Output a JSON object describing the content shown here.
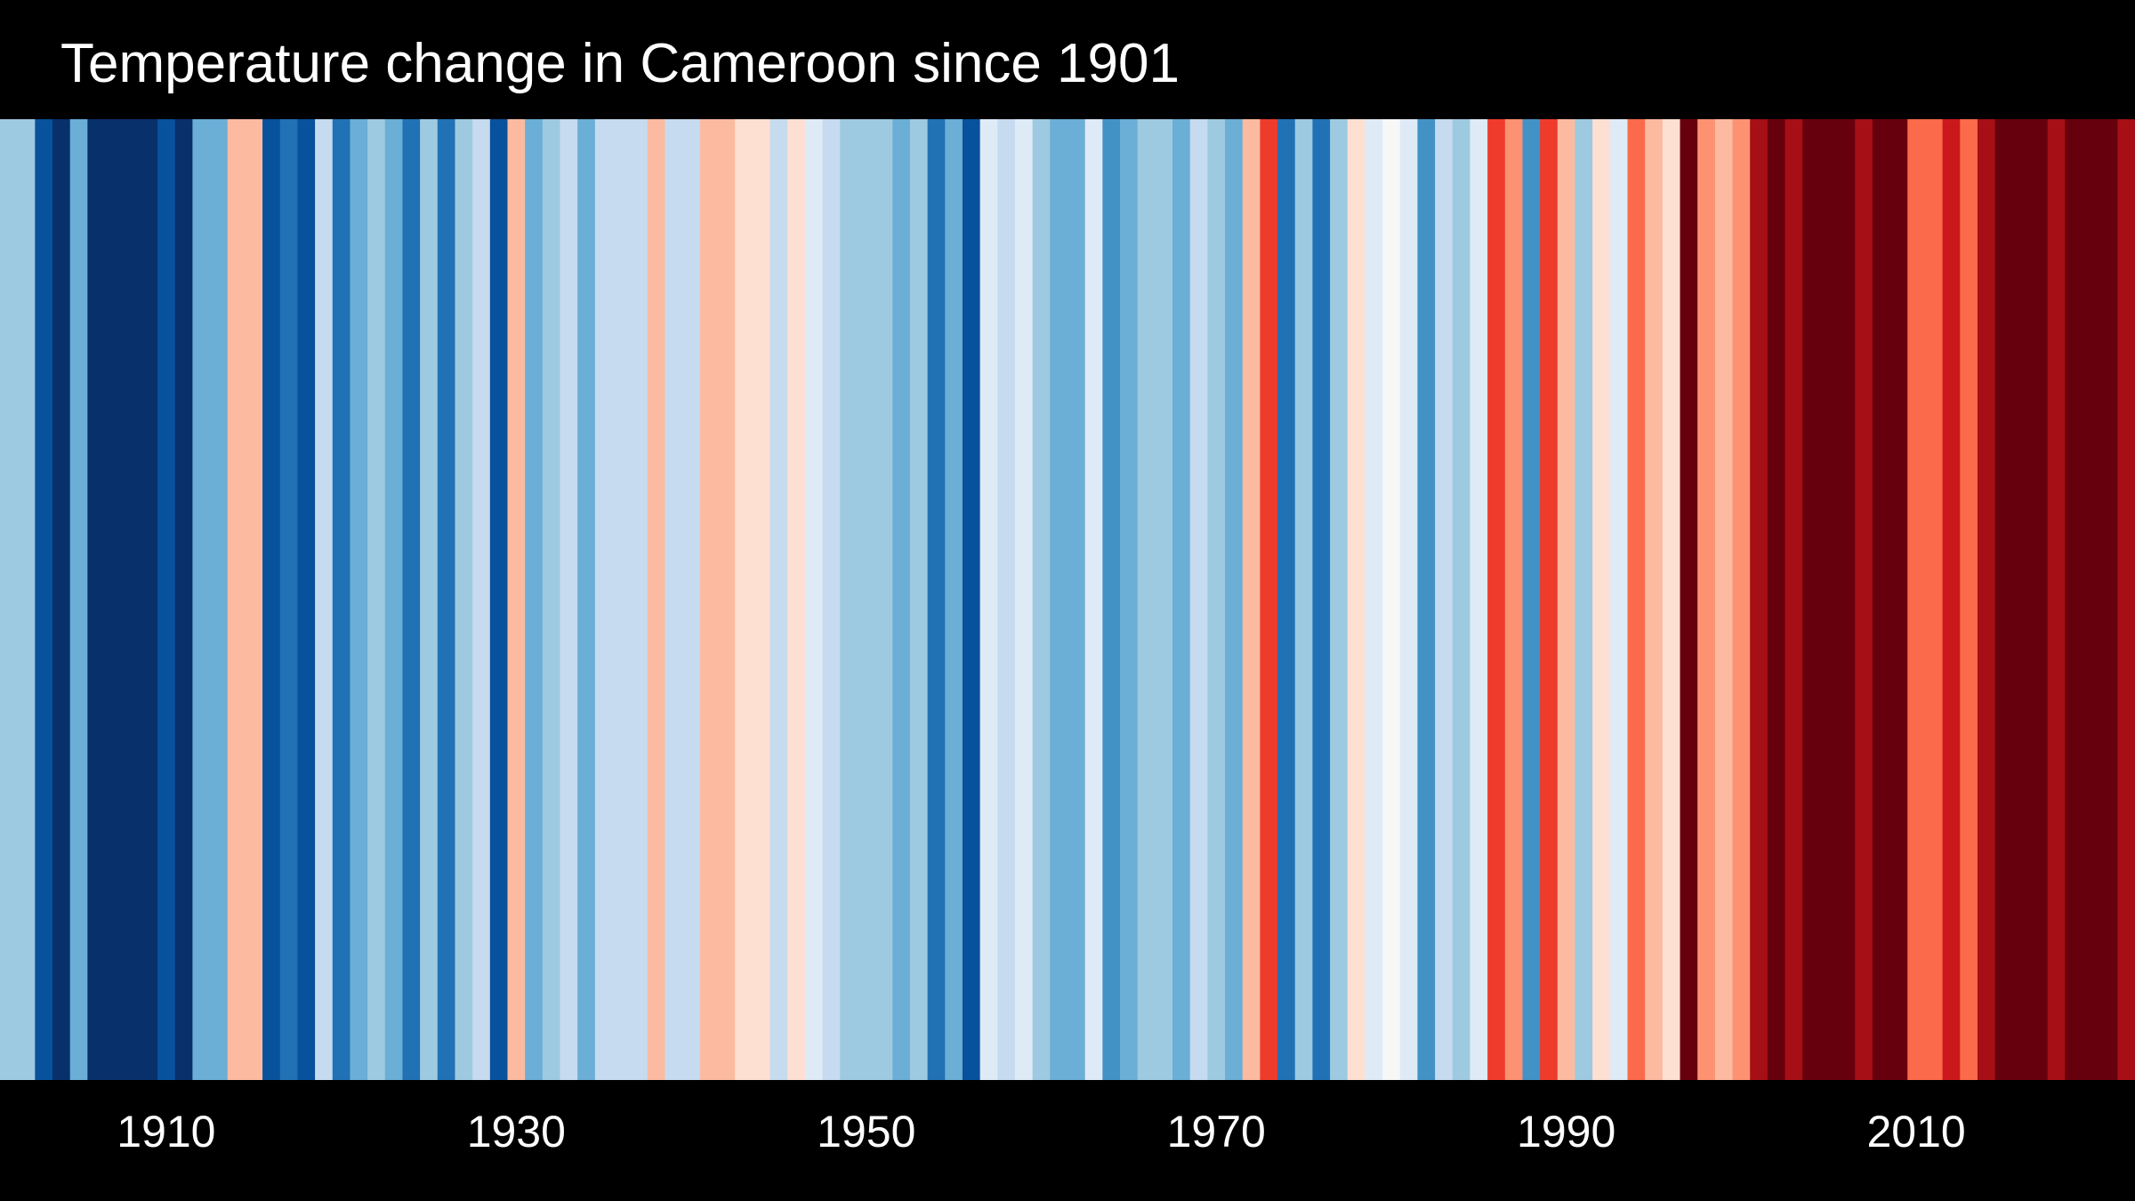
{
  "chart_data": {
    "type": "heatmap",
    "title": "Temperature change in Cameroon since 1901",
    "xlabel": "",
    "ylabel": "",
    "x_range": [
      1901,
      2022
    ],
    "tick_labels": [
      "1910",
      "1930",
      "1950",
      "1970",
      "1990",
      "2010"
    ],
    "tick_years": [
      1910,
      1930,
      1950,
      1970,
      1990,
      2010
    ],
    "years": [
      1901,
      1902,
      1903,
      1904,
      1905,
      1906,
      1907,
      1908,
      1909,
      1910,
      1911,
      1912,
      1913,
      1914,
      1915,
      1916,
      1917,
      1918,
      1919,
      1920,
      1921,
      1922,
      1923,
      1924,
      1925,
      1926,
      1927,
      1928,
      1929,
      1930,
      1931,
      1932,
      1933,
      1934,
      1935,
      1936,
      1937,
      1938,
      1939,
      1940,
      1941,
      1942,
      1943,
      1944,
      1945,
      1946,
      1947,
      1948,
      1949,
      1950,
      1951,
      1952,
      1953,
      1954,
      1955,
      1956,
      1957,
      1958,
      1959,
      1960,
      1961,
      1962,
      1963,
      1964,
      1965,
      1966,
      1967,
      1968,
      1969,
      1970,
      1971,
      1972,
      1973,
      1974,
      1975,
      1976,
      1977,
      1978,
      1979,
      1980,
      1981,
      1982,
      1983,
      1984,
      1985,
      1986,
      1987,
      1988,
      1989,
      1990,
      1991,
      1992,
      1993,
      1994,
      1995,
      1996,
      1997,
      1998,
      1999,
      2000,
      2001,
      2002,
      2003,
      2004,
      2005,
      2006,
      2007,
      2008,
      2009,
      2010,
      2011,
      2012,
      2013,
      2014,
      2015,
      2016,
      2017,
      2018,
      2019,
      2020,
      2021,
      2022
    ],
    "colors": [
      "#9ecae1",
      "#9ecae1",
      "#08519c",
      "#08306b",
      "#6baed6",
      "#08306b",
      "#08306b",
      "#08306b",
      "#08306b",
      "#08519c",
      "#08306b",
      "#6baed6",
      "#6baed6",
      "#fcbba1",
      "#fcbba1",
      "#08519c",
      "#2171b5",
      "#08519c",
      "#c6dbef",
      "#2171b5",
      "#6baed6",
      "#9ecae1",
      "#6baed6",
      "#2171b5",
      "#9ecae1",
      "#2171b5",
      "#9ecae1",
      "#c6dbef",
      "#08519c",
      "#fcbba1",
      "#6baed6",
      "#9ecae1",
      "#c6dbef",
      "#6baed6",
      "#c6dbef",
      "#c6dbef",
      "#c6dbef",
      "#fcbba1",
      "#c6dbef",
      "#c6dbef",
      "#fcbba1",
      "#fcbba1",
      "#fee0d2",
      "#fee0d2",
      "#c6dbef",
      "#fee0d2",
      "#deebf7",
      "#c6dbef",
      "#9ecae1",
      "#9ecae1",
      "#9ecae1",
      "#6baed6",
      "#9ecae1",
      "#2171b5",
      "#6baed6",
      "#08519c",
      "#deebf7",
      "#c6dbef",
      "#deebf7",
      "#9ecae1",
      "#6baed6",
      "#6baed6",
      "#deebf7",
      "#4292c6",
      "#6baed6",
      "#9ecae1",
      "#9ecae1",
      "#6baed6",
      "#c6dbef",
      "#9ecae1",
      "#6baed6",
      "#fcbba1",
      "#ef3b2c",
      "#2171b5",
      "#9ecae1",
      "#2171b5",
      "#9ecae1",
      "#fee0d2",
      "#deebf7",
      "#f7f7f7",
      "#deebf7",
      "#4292c6",
      "#c6dbef",
      "#9ecae1",
      "#deebf7",
      "#ef3b2c",
      "#fc9272",
      "#4292c6",
      "#ef3b2c",
      "#fcbba1",
      "#9ecae1",
      "#fee0d2",
      "#deebf7",
      "#fb6a4a",
      "#fcbba1",
      "#fee0d2",
      "#67000d",
      "#fc9272",
      "#fcbba1",
      "#fc9272",
      "#a50f15",
      "#67000d",
      "#a50f15",
      "#67000d",
      "#67000d",
      "#67000d",
      "#a50f15",
      "#67000d",
      "#67000d",
      "#fb6a4a",
      "#fb6a4a",
      "#cb181d",
      "#fb6a4a",
      "#a50f15",
      "#67000d",
      "#67000d",
      "#67000d",
      "#a50f15",
      "#67000d",
      "#67000d",
      "#67000d",
      "#a50f15"
    ]
  }
}
